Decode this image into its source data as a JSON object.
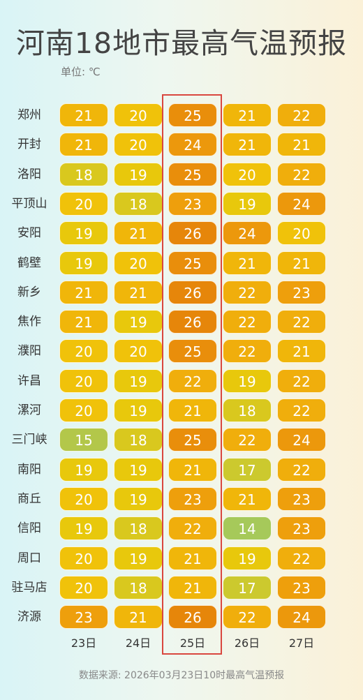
{
  "chart_data": {
    "type": "table",
    "title": "河南18地市最高气温预报",
    "unit_label": "单位: ℃",
    "dates": [
      "23日",
      "24日",
      "25日",
      "26日",
      "27日"
    ],
    "highlighted_date": "25日",
    "highlight_color": "#d9473f",
    "cities": [
      "郑州",
      "开封",
      "洛阳",
      "平顶山",
      "安阳",
      "鹤壁",
      "新乡",
      "焦作",
      "濮阳",
      "许昌",
      "漯河",
      "三门峡",
      "南阳",
      "商丘",
      "信阳",
      "周口",
      "驻马店",
      "济源"
    ],
    "values": [
      [
        21,
        20,
        25,
        21,
        22
      ],
      [
        21,
        20,
        24,
        21,
        21
      ],
      [
        18,
        19,
        25,
        20,
        22
      ],
      [
        20,
        18,
        23,
        19,
        24
      ],
      [
        19,
        21,
        26,
        24,
        20
      ],
      [
        19,
        20,
        25,
        21,
        21
      ],
      [
        21,
        21,
        26,
        22,
        23
      ],
      [
        21,
        19,
        26,
        22,
        22
      ],
      [
        20,
        20,
        25,
        22,
        21
      ],
      [
        20,
        19,
        22,
        19,
        22
      ],
      [
        20,
        19,
        21,
        18,
        22
      ],
      [
        15,
        18,
        25,
        22,
        24
      ],
      [
        19,
        19,
        21,
        17,
        22
      ],
      [
        20,
        19,
        23,
        21,
        23
      ],
      [
        19,
        18,
        22,
        14,
        23
      ],
      [
        20,
        19,
        21,
        19,
        22
      ],
      [
        20,
        18,
        21,
        17,
        23
      ],
      [
        23,
        21,
        26,
        22,
        24
      ]
    ],
    "color_scale": {
      "14": "#a6c95a",
      "15": "#b3c74a",
      "17": "#ccc92e",
      "18": "#d9c81e",
      "19": "#e8c80c",
      "20": "#f0c20a",
      "21": "#f0b60a",
      "22": "#f0ae0c",
      "23": "#ee9f0c",
      "24": "#ec980c",
      "25": "#e98e0b",
      "26": "#e6860a"
    }
  },
  "source": "数据来源: 2026年03月23日10时最高气温预报"
}
